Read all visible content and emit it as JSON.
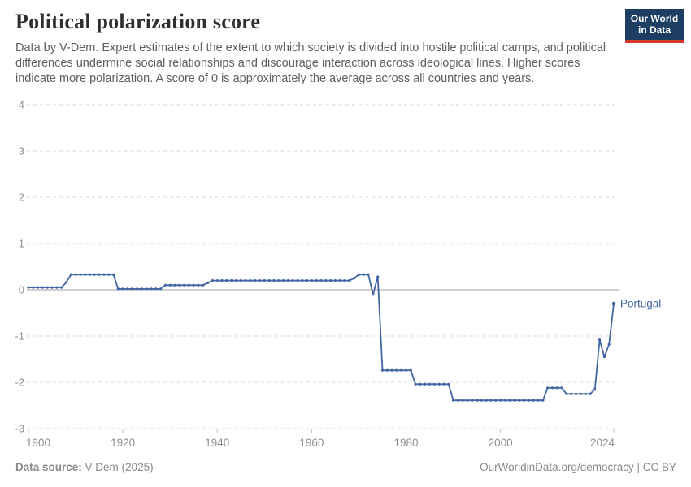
{
  "header": {
    "title": "Political polarization score",
    "subtitle": "Data by V-Dem. Expert estimates of the extent to which society is divided into hostile political camps, and political differences undermine social relationships and discourage interaction across ideological lines. Higher scores indicate more polarization. A score of 0 is approximately the average across all countries and years.",
    "logo": {
      "line1": "Our World",
      "line2": "in Data",
      "bg_color": "#1d3d63",
      "accent_color": "#d7382d"
    }
  },
  "chart_data": {
    "type": "line",
    "title": "Political polarization score",
    "xlabel": "",
    "ylabel": "",
    "xlim": [
      1900,
      2024
    ],
    "ylim": [
      -3,
      4
    ],
    "x_ticks": [
      1900,
      1920,
      1940,
      1960,
      1980,
      2000,
      2024
    ],
    "y_ticks": [
      4,
      3,
      2,
      1,
      0,
      -1,
      -2,
      -3
    ],
    "grid": "dashed horizontal gridlines, solid line at 0",
    "legend_position": "end-of-line label",
    "series": [
      {
        "name": "Portugal",
        "color": "#4265a5",
        "year_start": 1900,
        "values": [
          0.05,
          0.05,
          0.05,
          0.05,
          0.05,
          0.05,
          0.05,
          0.05,
          0.16,
          0.33,
          0.33,
          0.33,
          0.33,
          0.33,
          0.33,
          0.33,
          0.33,
          0.33,
          0.33,
          0.02,
          0.02,
          0.02,
          0.02,
          0.02,
          0.02,
          0.02,
          0.02,
          0.02,
          0.02,
          0.1,
          0.1,
          0.1,
          0.1,
          0.1,
          0.1,
          0.1,
          0.1,
          0.1,
          0.15,
          0.2,
          0.2,
          0.2,
          0.2,
          0.2,
          0.2,
          0.2,
          0.2,
          0.2,
          0.2,
          0.2,
          0.2,
          0.2,
          0.2,
          0.2,
          0.2,
          0.2,
          0.2,
          0.2,
          0.2,
          0.2,
          0.2,
          0.2,
          0.2,
          0.2,
          0.2,
          0.2,
          0.2,
          0.2,
          0.2,
          0.25,
          0.33,
          0.33,
          0.33,
          -0.1,
          0.28,
          -1.74,
          -1.74,
          -1.74,
          -1.74,
          -1.74,
          -1.74,
          -1.74,
          -2.04,
          -2.04,
          -2.04,
          -2.04,
          -2.04,
          -2.04,
          -2.04,
          -2.04,
          -2.39,
          -2.39,
          -2.39,
          -2.39,
          -2.39,
          -2.39,
          -2.39,
          -2.39,
          -2.39,
          -2.39,
          -2.39,
          -2.39,
          -2.39,
          -2.39,
          -2.39,
          -2.39,
          -2.39,
          -2.39,
          -2.39,
          -2.39,
          -2.12,
          -2.12,
          -2.12,
          -2.12,
          -2.25,
          -2.25,
          -2.25,
          -2.25,
          -2.25,
          -2.25,
          -2.15,
          -1.08,
          -1.45,
          -1.18,
          -0.3
        ]
      }
    ]
  },
  "footer": {
    "source_label": "Data source:",
    "source_value": "V-Dem (2025)",
    "credit": "OurWorldinData.org/democracy | CC BY"
  }
}
